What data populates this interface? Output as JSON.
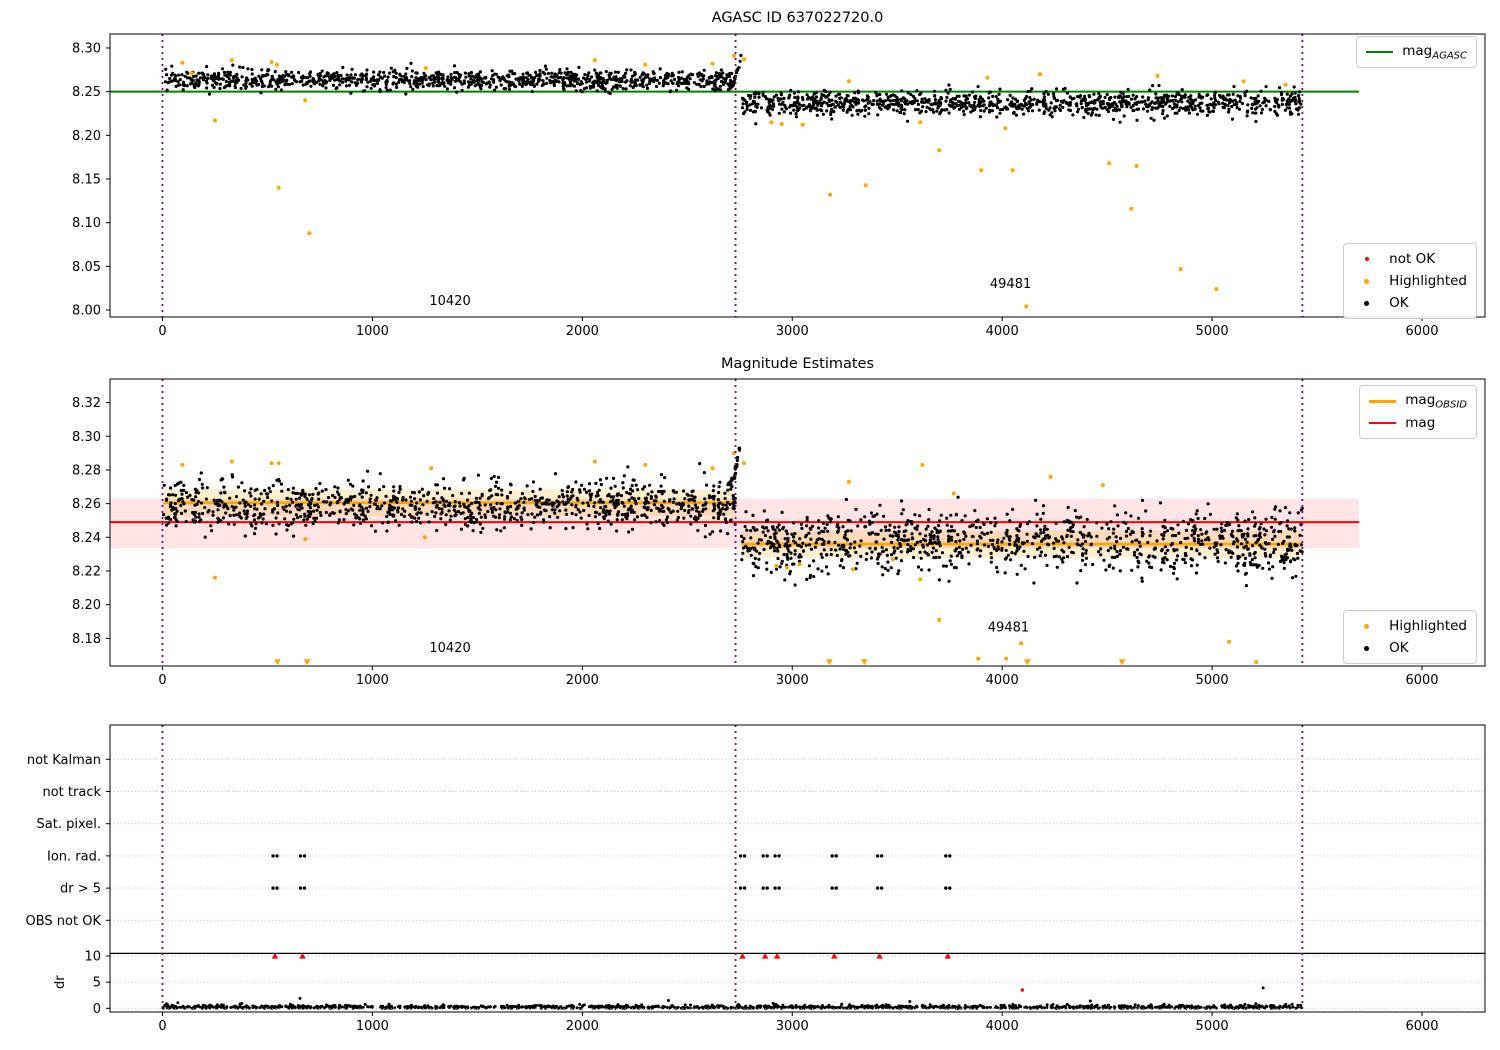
{
  "colors": {
    "ok": "#000000",
    "highlighted": "#ffa500",
    "not_ok": "#ff0000",
    "agasc_line": "#008000",
    "mag_line": "#ff0000",
    "obsid_line": "#ffa500",
    "separator": "#800080",
    "mag_band": "rgba(255,0,0,0.10)",
    "obsid_band": "rgba(255,165,0,0.18)",
    "grid": "#b8b8b8"
  },
  "chart_data": [
    {
      "type": "scatter",
      "title": "AGASC ID 637022720.0",
      "xlim": [
        -250,
        6300
      ],
      "ylim": [
        7.992,
        8.316
      ],
      "xticks": [
        0,
        1000,
        2000,
        3000,
        4000,
        5000,
        6000
      ],
      "yticks": [
        8.0,
        8.05,
        8.1,
        8.15,
        8.2,
        8.25,
        8.3
      ],
      "grid": false,
      "legend_position": [
        "upper right",
        "lower right"
      ],
      "ref_line": {
        "legend_main": "mag",
        "legend_sub": "AGASC",
        "y": 8.25,
        "x_start": -250,
        "x_end": 5700
      },
      "obsid_separators": [
        0,
        2730,
        5430
      ],
      "obsid_labels": [
        {
          "text": "10420",
          "x": 1370,
          "y": 8.006
        },
        {
          "text": "49481",
          "x": 4040,
          "y": 8.025
        }
      ],
      "ok_clusters": [
        {
          "x0": 5,
          "x1": 2730,
          "n": 1050,
          "mean": 8.2635,
          "sd": 0.006,
          "ymin": 8.245,
          "ymax": 8.288,
          "seed": 101
        },
        {
          "x0": 2758,
          "x1": 5430,
          "n": 1050,
          "mean": 8.2365,
          "sd": 0.0075,
          "ymin": 8.212,
          "ymax": 8.258,
          "seed": 202
        }
      ],
      "boundary_spike": {
        "x0": 2695,
        "x1": 2757,
        "y0": 8.255,
        "y1": 8.292,
        "n": 30,
        "seed": 7
      },
      "highlighted_points": [
        [
          95,
          8.283
        ],
        [
          140,
          8.271
        ],
        [
          250,
          8.217
        ],
        [
          330,
          8.286
        ],
        [
          520,
          8.284
        ],
        [
          545,
          8.281
        ],
        [
          553,
          8.14
        ],
        [
          680,
          8.24
        ],
        [
          700,
          8.088
        ],
        [
          1255,
          8.277
        ],
        [
          2060,
          8.286
        ],
        [
          2300,
          8.281
        ],
        [
          2620,
          8.282
        ],
        [
          2722,
          8.291
        ],
        [
          2770,
          8.287
        ],
        [
          2900,
          8.215
        ],
        [
          2950,
          8.213
        ],
        [
          3050,
          8.212
        ],
        [
          3180,
          8.132
        ],
        [
          3350,
          8.143
        ],
        [
          3610,
          8.215
        ],
        [
          3700,
          8.183
        ],
        [
          3900,
          8.16
        ],
        [
          4015,
          8.208
        ],
        [
          4050,
          8.16
        ],
        [
          4115,
          8.004
        ],
        [
          4510,
          8.168
        ],
        [
          4615,
          8.116
        ],
        [
          4640,
          8.165
        ],
        [
          4850,
          8.047
        ],
        [
          5020,
          8.024
        ],
        [
          3270,
          8.262
        ],
        [
          3930,
          8.266
        ],
        [
          4180,
          8.27
        ],
        [
          4740,
          8.268
        ],
        [
          5150,
          8.262
        ],
        [
          5350,
          8.258
        ]
      ],
      "legend_status": [
        {
          "label": "not OK",
          "color": "#ff0000"
        },
        {
          "label": "Highlighted",
          "color": "#ffa500"
        },
        {
          "label": "OK",
          "color": "#000000"
        }
      ]
    },
    {
      "type": "scatter",
      "title": "Magnitude Estimates",
      "xlim": [
        -250,
        6300
      ],
      "ylim": [
        8.1636,
        8.334
      ],
      "xticks": [
        0,
        1000,
        2000,
        3000,
        4000,
        5000,
        6000
      ],
      "yticks": [
        8.18,
        8.2,
        8.22,
        8.24,
        8.26,
        8.28,
        8.3,
        8.32
      ],
      "mag_line": {
        "y": 8.249,
        "x_start": -250,
        "x_end": 5700,
        "band": [
          8.2335,
          8.263
        ]
      },
      "obsid_lines": [
        {
          "obsid": "10420",
          "x0": 5,
          "x1": 2730,
          "y": 8.2605,
          "band": [
            8.2525,
            8.2685
          ]
        },
        {
          "obsid": "49481",
          "x0": 2758,
          "x1": 5430,
          "y": 8.236,
          "band": [
            8.228,
            8.244
          ]
        }
      ],
      "obsid_separators": [
        0,
        2730,
        5430
      ],
      "obsid_labels": [
        {
          "text": "10420",
          "x": 1370,
          "y": 8.172
        },
        {
          "text": "49481",
          "x": 4030,
          "y": 8.184
        }
      ],
      "ok_clusters": [
        {
          "x0": 5,
          "x1": 2730,
          "n": 1050,
          "mean": 8.259,
          "sd": 0.0075,
          "ymin": 8.24,
          "ymax": 8.287,
          "seed": 303
        },
        {
          "x0": 2758,
          "x1": 5430,
          "n": 1050,
          "mean": 8.2375,
          "sd": 0.0095,
          "ymin": 8.208,
          "ymax": 8.267,
          "seed": 404
        }
      ],
      "boundary_spike": {
        "x0": 2695,
        "x1": 2757,
        "y0": 8.27,
        "y1": 8.301,
        "n": 25,
        "seed": 9
      },
      "highlighted_points": [
        [
          95,
          8.283
        ],
        [
          250,
          8.216
        ],
        [
          330,
          8.285
        ],
        [
          520,
          8.284
        ],
        [
          553,
          8.284
        ],
        [
          680,
          8.239
        ],
        [
          1250,
          8.24
        ],
        [
          1280,
          8.281
        ],
        [
          2060,
          8.285
        ],
        [
          2300,
          8.283
        ],
        [
          2620,
          8.281
        ],
        [
          2722,
          8.29
        ],
        [
          2770,
          8.284
        ],
        [
          2925,
          8.223
        ],
        [
          2975,
          8.222
        ],
        [
          3035,
          8.224
        ],
        [
          3290,
          8.221
        ],
        [
          3480,
          8.227
        ],
        [
          3610,
          8.215
        ],
        [
          3700,
          8.191
        ],
        [
          3770,
          8.266
        ],
        [
          3886,
          8.168
        ],
        [
          4019,
          8.168
        ],
        [
          4090,
          8.177
        ],
        [
          4230,
          8.276
        ],
        [
          4480,
          8.271
        ],
        [
          5080,
          8.178
        ],
        [
          5210,
          8.166
        ],
        [
          3270,
          8.273
        ],
        [
          3620,
          8.283
        ]
      ],
      "clipped_markers_x": [
        548,
        689,
        3177,
        3343,
        4120,
        4571
      ],
      "legend_lines": [
        {
          "label_main": "mag",
          "label_sub": "OBSID",
          "color": "#ffa500"
        },
        {
          "label_main": "mag",
          "label_sub": "",
          "color": "#ff0000"
        }
      ],
      "legend_status": [
        {
          "label": "Highlighted",
          "color": "#ffa500"
        },
        {
          "label": "OK",
          "color": "#000000"
        }
      ]
    },
    {
      "type": "flags",
      "flag_rows": [
        "not Kalman",
        "not track",
        "Sat. pixel.",
        "Ion. rad.",
        "dr > 5",
        "OBS not OK"
      ],
      "dr_axis_label": "dr",
      "dr_ticks": [
        10,
        5,
        0
      ],
      "xticks": [
        0,
        1000,
        2000,
        3000,
        4000,
        5000,
        6000
      ],
      "obsid_separators": [
        0,
        2730,
        5430
      ],
      "flag_events": {
        "ion_rad": [
          536,
          667,
          2763,
          2871,
          2928,
          3200,
          3416,
          3741
        ],
        "dr_gt_5": [
          536,
          667,
          2763,
          2871,
          2928,
          3200,
          3416,
          3741
        ]
      },
      "dr_clipped_red_x": [
        536,
        667,
        2763,
        2871,
        2928,
        3200,
        3416,
        3741
      ],
      "dr_red_outliers": [
        [
          4096,
          3.5
        ]
      ],
      "dr_black_outliers": [
        [
          5243,
          3.9
        ],
        [
          655,
          1.9
        ],
        [
          2410,
          1.5
        ],
        [
          3560,
          1.3
        ],
        [
          4420,
          1.4
        ]
      ],
      "dr_series": {
        "x0": 0,
        "x1": 5430,
        "n": 1300,
        "scale": 0.3,
        "seed": 505
      },
      "separator_line_dr": 10.5
    }
  ]
}
